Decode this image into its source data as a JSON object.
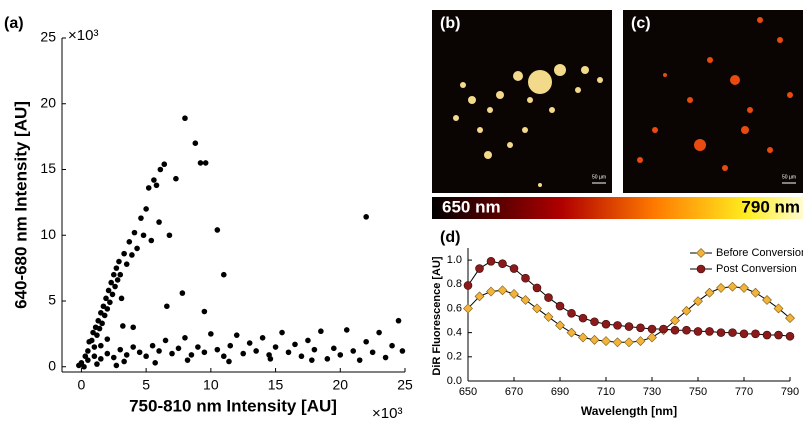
{
  "chart_data": [
    {
      "type": "scatter",
      "label": "(a)",
      "x_label": "750-810 nm Intensity [AU]",
      "y_label": "640-680 nm Intensity [AU]",
      "x_multiplier": "×10³",
      "y_multiplier": "×10³",
      "color": "#000000",
      "xlim": [
        -1.5,
        25
      ],
      "ylim": [
        -0.4,
        25
      ],
      "xticks": [
        0,
        5,
        10,
        15,
        20,
        25
      ],
      "yticks": [
        0,
        5,
        10,
        15,
        20,
        25
      ],
      "x": [
        0.3,
        0.5,
        0.6,
        0.8,
        0.9,
        1.0,
        1.1,
        1.2,
        1.3,
        1.4,
        1.5,
        1.6,
        1.7,
        1.8,
        1.9,
        2.0,
        2.1,
        2.2,
        2.3,
        2.4,
        2.5,
        2.6,
        2.7,
        2.8,
        2.9,
        3.0,
        3.1,
        3.3,
        3.5,
        3.7,
        3.9,
        4.1,
        4.3,
        4.6,
        4.8,
        5.0,
        5.2,
        5.4,
        5.6,
        5.8,
        6.1,
        6.4,
        6.0,
        6.8,
        7.3,
        8.0,
        8.8,
        9.2,
        9.6,
        10.5,
        11.0,
        9.5,
        6.6,
        3.2,
        2.0,
        1.5,
        4.0,
        7.8,
        0.0,
        0.5,
        1.0,
        1.5,
        2.0,
        2.5,
        3.0,
        3.5,
        4.0,
        4.5,
        5.0,
        5.5,
        6.0,
        6.5,
        7.0,
        7.5,
        8.0,
        8.5,
        9.0,
        9.5,
        10.0,
        10.5,
        11.0,
        11.5,
        12.0,
        12.5,
        13.0,
        13.5,
        14.0,
        14.5,
        15.0,
        15.5,
        16.0,
        16.5,
        17.0,
        17.5,
        18.0,
        18.5,
        19.0,
        19.5,
        20.0,
        20.5,
        21.0,
        21.5,
        22.0,
        22.0,
        22.5,
        23.0,
        23.5,
        24.0,
        24.5,
        24.8,
        0.2,
        -0.2,
        1.2,
        3.3,
        5.7,
        8.2,
        11.4,
        14.6,
        17.8,
        2.7
      ],
      "values": [
        0.8,
        1.2,
        1.9,
        2.0,
        2.6,
        1.5,
        3.0,
        2.4,
        3.5,
        2.9,
        4.1,
        3.3,
        4.6,
        3.9,
        5.2,
        4.4,
        5.8,
        4.9,
        6.4,
        5.5,
        7.0,
        6.1,
        7.5,
        6.6,
        8.0,
        7.0,
        5.2,
        8.6,
        7.8,
        9.5,
        8.5,
        10.2,
        9.0,
        11.3,
        10.0,
        12.0,
        13.6,
        9.6,
        14.2,
        13.8,
        15.0,
        15.4,
        11.0,
        10.0,
        14.3,
        18.9,
        17.0,
        15.5,
        15.5,
        10.4,
        7.0,
        4.2,
        4.6,
        3.1,
        2.1,
        1.6,
        3.0,
        5.6,
        0.3,
        0.5,
        0.8,
        0.6,
        1.0,
        0.7,
        1.3,
        0.9,
        1.5,
        1.1,
        0.8,
        1.6,
        1.2,
        2.0,
        1.0,
        1.4,
        2.2,
        0.9,
        1.5,
        1.1,
        2.5,
        1.3,
        0.8,
        1.6,
        2.4,
        1.0,
        1.8,
        1.2,
        2.2,
        0.9,
        1.5,
        2.6,
        1.1,
        1.7,
        0.8,
        2.0,
        1.3,
        2.7,
        0.6,
        1.4,
        0.9,
        2.8,
        1.2,
        0.5,
        1.9,
        11.4,
        1.1,
        2.6,
        0.7,
        1.6,
        3.5,
        1.2,
        0.0,
        0.1,
        0.2,
        0.4,
        0.3,
        0.5,
        0.4,
        0.6,
        0.5,
        0.1
      ]
    },
    {
      "type": "line",
      "label": "(d)",
      "x_label": "Wavelength [nm]",
      "y_label": "DiR Fluorescence [AU]",
      "xlim": [
        650,
        790
      ],
      "ylim": [
        0,
        1.1
      ],
      "xticks": [
        650,
        670,
        690,
        710,
        730,
        750,
        770,
        790
      ],
      "yticks": [
        {
          "value": 0,
          "label": "0.0"
        },
        {
          "value": 0.2,
          "label": "0.2"
        },
        {
          "value": 0.4,
          "label": "0.4"
        },
        {
          "value": 0.6,
          "label": "0.6"
        },
        {
          "value": 0.8,
          "label": "0.8"
        },
        {
          "value": 1,
          "label": "1.0"
        }
      ],
      "legend": "top-right",
      "x": [
        650,
        655,
        660,
        665,
        670,
        675,
        680,
        685,
        690,
        695,
        700,
        705,
        710,
        715,
        720,
        725,
        730,
        735,
        740,
        745,
        750,
        755,
        760,
        765,
        770,
        775,
        780,
        785,
        790
      ],
      "series": [
        {
          "name": "Before Conversion",
          "color": "#f2b33d",
          "marker": "diamond",
          "values": [
            0.6,
            0.7,
            0.74,
            0.75,
            0.72,
            0.67,
            0.6,
            0.53,
            0.46,
            0.4,
            0.36,
            0.34,
            0.33,
            0.32,
            0.32,
            0.33,
            0.36,
            0.42,
            0.5,
            0.58,
            0.66,
            0.73,
            0.77,
            0.78,
            0.77,
            0.73,
            0.67,
            0.6,
            0.52
          ]
        },
        {
          "name": "Post Conversion",
          "color": "#8b1a1a",
          "marker": "circle",
          "values": [
            0.79,
            0.93,
            0.99,
            0.97,
            0.93,
            0.85,
            0.77,
            0.69,
            0.62,
            0.56,
            0.52,
            0.49,
            0.47,
            0.46,
            0.45,
            0.44,
            0.43,
            0.43,
            0.42,
            0.42,
            0.41,
            0.41,
            0.4,
            0.4,
            0.39,
            0.39,
            0.38,
            0.38,
            0.37
          ]
        }
      ]
    }
  ],
  "images": [
    {
      "label": "(b)",
      "scale_bar": "50 µm"
    },
    {
      "label": "(c)",
      "scale_bar": "50 µm"
    }
  ],
  "colorbar": {
    "left": "650 nm",
    "right": "790 nm"
  }
}
